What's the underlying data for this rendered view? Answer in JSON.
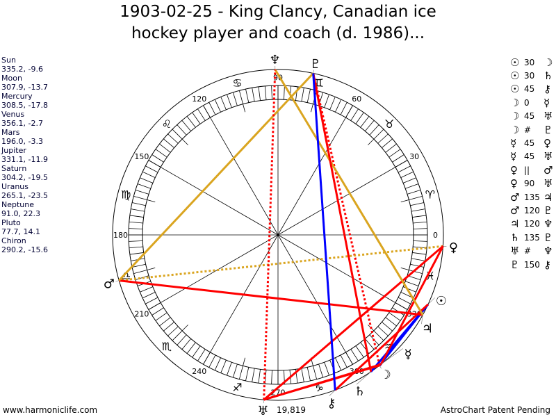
{
  "title_line1": "1903-02-25 - King Clancy, Canadian ice",
  "title_line2": "hockey player and coach (d. 1986)...",
  "planets": [
    {
      "name": "Sun",
      "glyph": "☉",
      "lon": 335.2,
      "lat": -9.6,
      "text": "335.2, -9.6"
    },
    {
      "name": "Moon",
      "glyph": "☽",
      "lon": 307.9,
      "lat": -13.7,
      "text": "307.9, -13.7"
    },
    {
      "name": "Mercury",
      "glyph": "☿",
      "lon": 308.5,
      "lat": -17.8,
      "text": "308.5, -17.8"
    },
    {
      "name": "Venus",
      "glyph": "♀",
      "lon": 356.1,
      "lat": -2.7,
      "text": "356.1, -2.7"
    },
    {
      "name": "Mars",
      "glyph": "♂",
      "lon": 196.0,
      "lat": -3.3,
      "text": "196.0, -3.3"
    },
    {
      "name": "Jupiter",
      "glyph": "♃",
      "lon": 331.1,
      "lat": -11.9,
      "text": "331.1, -11.9"
    },
    {
      "name": "Saturn",
      "glyph": "♄",
      "lon": 304.2,
      "lat": -19.5,
      "text": "304.2, -19.5"
    },
    {
      "name": "Uranus",
      "glyph": "♅",
      "lon": 265.1,
      "lat": -23.5,
      "text": "265.1, -23.5"
    },
    {
      "name": "Neptune",
      "glyph": "♆",
      "lon": 91.0,
      "lat": 22.3,
      "text": "91.0, 22.3"
    },
    {
      "name": "Pluto",
      "glyph": "♇",
      "lon": 77.7,
      "lat": 14.1,
      "text": "77.7, 14.1"
    },
    {
      "name": "Chiron",
      "glyph": "⚷",
      "lon": 290.2,
      "lat": -15.6,
      "text": "290.2, -15.6"
    }
  ],
  "aspects": [
    {
      "a": "Sun",
      "b": "Moon",
      "g1": "☉",
      "g2": "☽",
      "label": "30",
      "style": "blue"
    },
    {
      "a": "Sun",
      "b": "Saturn",
      "g1": "☉",
      "g2": "♄",
      "label": "30",
      "style": "blue"
    },
    {
      "a": "Sun",
      "b": "Chiron",
      "g1": "☉",
      "g2": "⚷",
      "label": "45",
      "style": "red"
    },
    {
      "a": "Moon",
      "b": "Mercury",
      "g1": "☽",
      "g2": "☿",
      "label": "0",
      "style": "blue"
    },
    {
      "a": "Moon",
      "b": "Uranus",
      "g1": "☽",
      "g2": "♅",
      "label": "45",
      "style": "red"
    },
    {
      "a": "Moon",
      "b": "Pluto",
      "g1": "☽",
      "g2": "♇",
      "label": "#",
      "style": "red-dot"
    },
    {
      "a": "Mercury",
      "b": "Venus",
      "g1": "☿",
      "g2": "♀",
      "label": "45",
      "style": "red"
    },
    {
      "a": "Mercury",
      "b": "Uranus",
      "g1": "☿",
      "g2": "♅",
      "label": "45",
      "style": "red"
    },
    {
      "a": "Venus",
      "b": "Mars",
      "g1": "♀",
      "g2": "♂",
      "label": "||",
      "style": "gold-dot"
    },
    {
      "a": "Venus",
      "b": "Uranus",
      "g1": "♀",
      "g2": "♅",
      "label": "90",
      "style": "red"
    },
    {
      "a": "Mars",
      "b": "Jupiter",
      "g1": "♂",
      "g2": "♃",
      "label": "135",
      "style": "red"
    },
    {
      "a": "Mars",
      "b": "Pluto",
      "g1": "♂",
      "g2": "♇",
      "label": "120",
      "style": "gold"
    },
    {
      "a": "Jupiter",
      "b": "Neptune",
      "g1": "♃",
      "g2": "♆",
      "label": "120",
      "style": "gold"
    },
    {
      "a": "Saturn",
      "b": "Pluto",
      "g1": "♄",
      "g2": "♇",
      "label": "135",
      "style": "red"
    },
    {
      "a": "Uranus",
      "b": "Neptune",
      "g1": "♅",
      "g2": "♆",
      "label": "#",
      "style": "red-dot"
    },
    {
      "a": "Pluto",
      "b": "Chiron",
      "g1": "♇",
      "g2": "⚷",
      "label": "150",
      "style": "blue"
    }
  ],
  "degree_labels": [
    "0",
    "30",
    "60",
    "90",
    "120",
    "150",
    "180",
    "210",
    "240",
    "270",
    "300",
    "330"
  ],
  "signs": [
    "♈",
    "♉",
    "♊",
    "♋",
    "♌",
    "♍",
    "♎",
    "♏",
    "♐",
    "♑",
    "♒",
    "♓"
  ],
  "colors": {
    "red": "#ff0000",
    "blue": "#0000ff",
    "gold": "#daa520"
  },
  "count": "19,819",
  "footer_left": "www.harmoniclife.com",
  "footer_right": "AstroChart Patent Pending"
}
